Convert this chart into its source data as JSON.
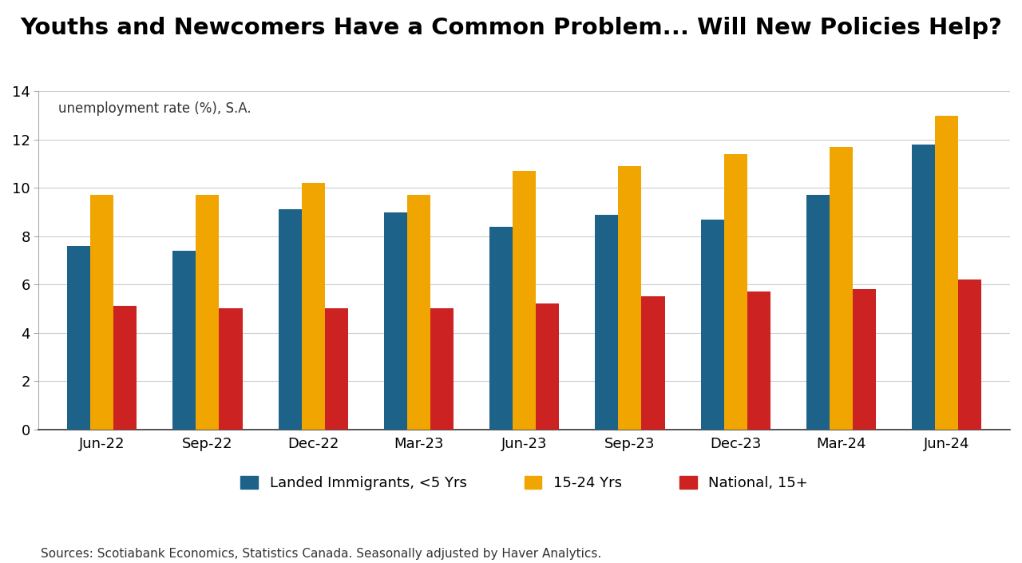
{
  "title": "Youths and Newcomers Have a Common Problem... Will New Policies Help?",
  "ylabel_text": "unemployment rate (%), S.A.",
  "source_text": "Sources: Scotiabank Economics, Statistics Canada. Seasonally adjusted by Haver Analytics.",
  "categories": [
    "Jun-22",
    "Sep-22",
    "Dec-22",
    "Mar-23",
    "Jun-23",
    "Sep-23",
    "Dec-23",
    "Mar-24",
    "Jun-24"
  ],
  "series": {
    "Landed Immigrants, <5 Yrs": [
      7.6,
      7.4,
      9.1,
      9.0,
      8.4,
      8.9,
      8.7,
      9.7,
      11.8
    ],
    "15-24 Yrs": [
      9.7,
      9.7,
      10.2,
      9.7,
      10.7,
      10.9,
      11.4,
      11.7,
      13.0
    ],
    "National, 15+": [
      5.1,
      5.0,
      5.0,
      5.0,
      5.2,
      5.5,
      5.7,
      5.8,
      6.2
    ]
  },
  "colors": {
    "Landed Immigrants, <5 Yrs": "#1d6289",
    "15-24 Yrs": "#f0a500",
    "National, 15+": "#cc2222"
  },
  "ylim": [
    0,
    14
  ],
  "yticks": [
    0,
    2,
    4,
    6,
    8,
    10,
    12,
    14
  ],
  "bar_width": 0.22,
  "bar_gap": 0.0,
  "background_color": "#ffffff",
  "title_fontsize": 21,
  "axis_label_fontsize": 12,
  "tick_fontsize": 13,
  "legend_fontsize": 13,
  "source_fontsize": 11
}
